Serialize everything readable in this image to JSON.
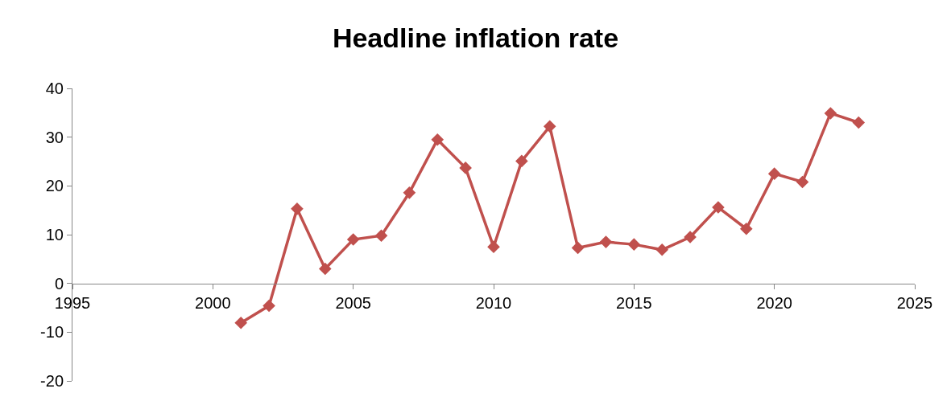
{
  "chart_data": {
    "type": "line",
    "title": "Headline inflation rate",
    "x": [
      2001,
      2002,
      2003,
      2004,
      2005,
      2006,
      2007,
      2008,
      2009,
      2010,
      2011,
      2012,
      2013,
      2014,
      2015,
      2016,
      2017,
      2018,
      2019,
      2020,
      2021,
      2022,
      2023
    ],
    "series": [
      {
        "color": "#c0504d",
        "values": [
          -8.1,
          -4.6,
          15.3,
          3.0,
          9.0,
          9.8,
          18.6,
          29.5,
          23.7,
          7.5,
          25.1,
          32.2,
          7.3,
          8.5,
          8.0,
          6.9,
          9.5,
          15.6,
          11.2,
          22.5,
          20.8,
          34.9,
          33.0
        ]
      }
    ],
    "xlim": [
      1995,
      2025
    ],
    "xticks": [
      1995,
      2000,
      2005,
      2010,
      2015,
      2020,
      2025
    ],
    "ylim": [
      -20,
      40
    ],
    "yticks": [
      -20,
      -10,
      0,
      10,
      20,
      30,
      40
    ],
    "marker": "diamond",
    "line_style": "solid"
  }
}
